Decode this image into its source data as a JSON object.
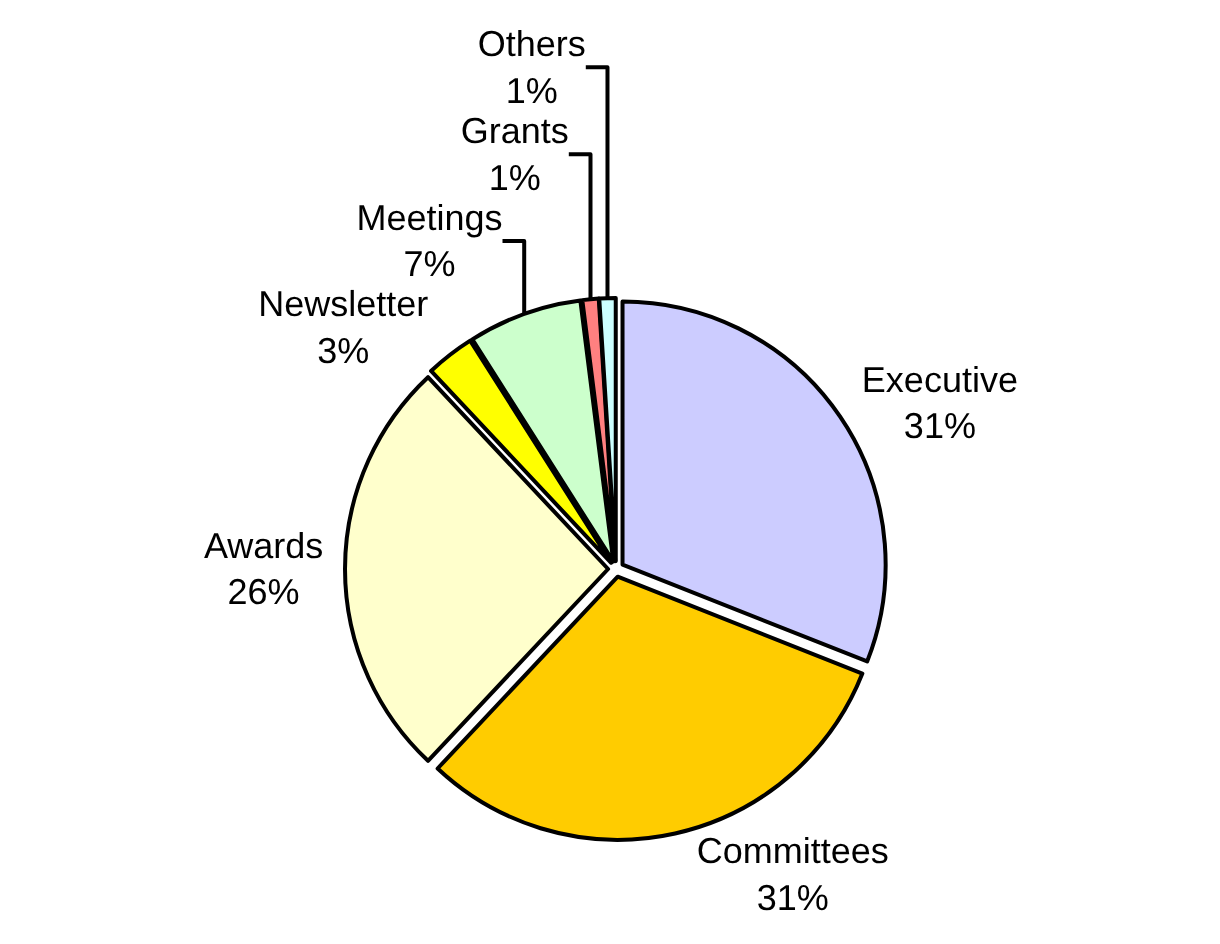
{
  "chart_data": {
    "type": "pie",
    "categories": [
      "Executive",
      "Committees",
      "Awards",
      "Newsletter",
      "Meetings",
      "Grants",
      "Others"
    ],
    "values": [
      31,
      31,
      26,
      3,
      7,
      1,
      1
    ],
    "colors": [
      "#ccccff",
      "#ffcc00",
      "#ffffcc",
      "#ffff00",
      "#ccffcc",
      "#ff8080",
      "#ccffff"
    ],
    "value_labels": [
      "31%",
      "31%",
      "26%",
      "3%",
      "7%",
      "1%",
      "1%"
    ],
    "legend": false
  }
}
